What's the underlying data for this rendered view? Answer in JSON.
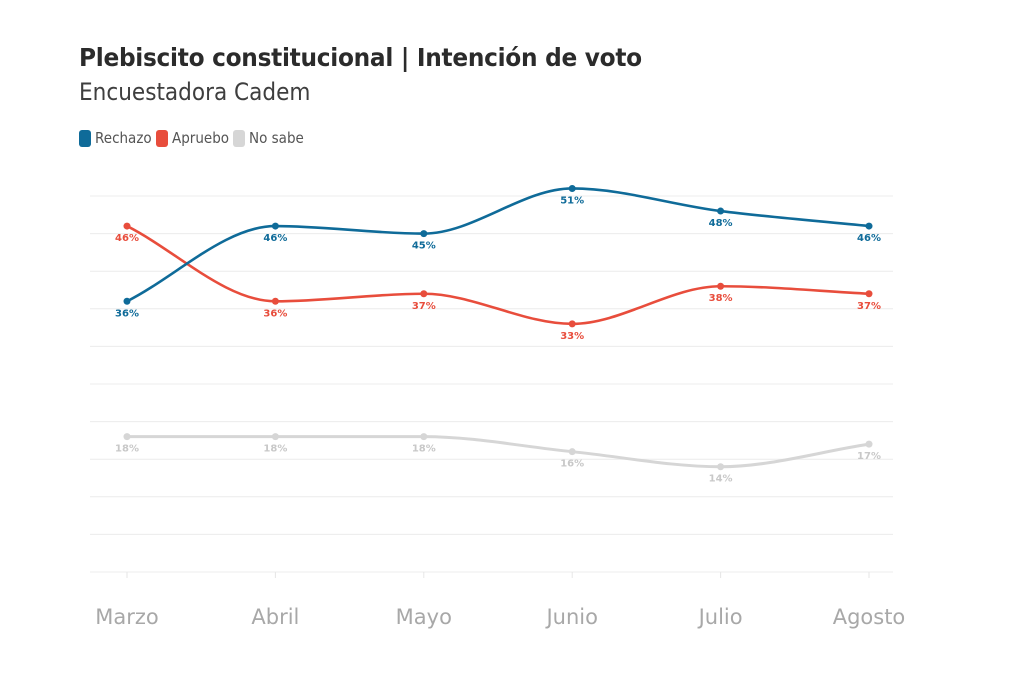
{
  "header": {
    "title": "Plebiscito constitucional | Intención de voto",
    "subtitle": "Encuestadora Cadem"
  },
  "legend": [
    {
      "label": "Rechazo",
      "color": "#0f6b99"
    },
    {
      "label": "Apruebo",
      "color": "#e84d3c"
    },
    {
      "label": "No sabe",
      "color": "#d6d6d6"
    }
  ],
  "chart_data": {
    "type": "line",
    "title": "Plebiscito constitucional | Intención de voto",
    "subtitle": "Encuestadora Cadem",
    "categories": [
      "Marzo",
      "Abril",
      "Mayo",
      "Junio",
      "Julio",
      "Agosto"
    ],
    "series": [
      {
        "name": "Rechazo",
        "color": "#0f6b99",
        "values": [
          36,
          46,
          45,
          51,
          48,
          46
        ],
        "labels": [
          "36%",
          "46%",
          "45%",
          "51%",
          "48%",
          "46%"
        ]
      },
      {
        "name": "Apruebo",
        "color": "#e84d3c",
        "values": [
          46,
          36,
          37,
          33,
          38,
          37
        ],
        "labels": [
          "46%",
          "36%",
          "37%",
          "33%",
          "38%",
          "37%"
        ]
      },
      {
        "name": "No sabe",
        "color": "#d6d6d6",
        "values": [
          18,
          18,
          18,
          16,
          14,
          17
        ],
        "labels": [
          "18%",
          "18%",
          "18%",
          "16%",
          "14%",
          "17%"
        ]
      }
    ],
    "xlabel": "",
    "ylabel": "",
    "ylim": [
      0,
      50
    ],
    "ygrid_step": 5,
    "grid": true,
    "legend_position": "top-left",
    "curve": "smooth",
    "label_color_no_sabe": "#c8c8c8"
  }
}
